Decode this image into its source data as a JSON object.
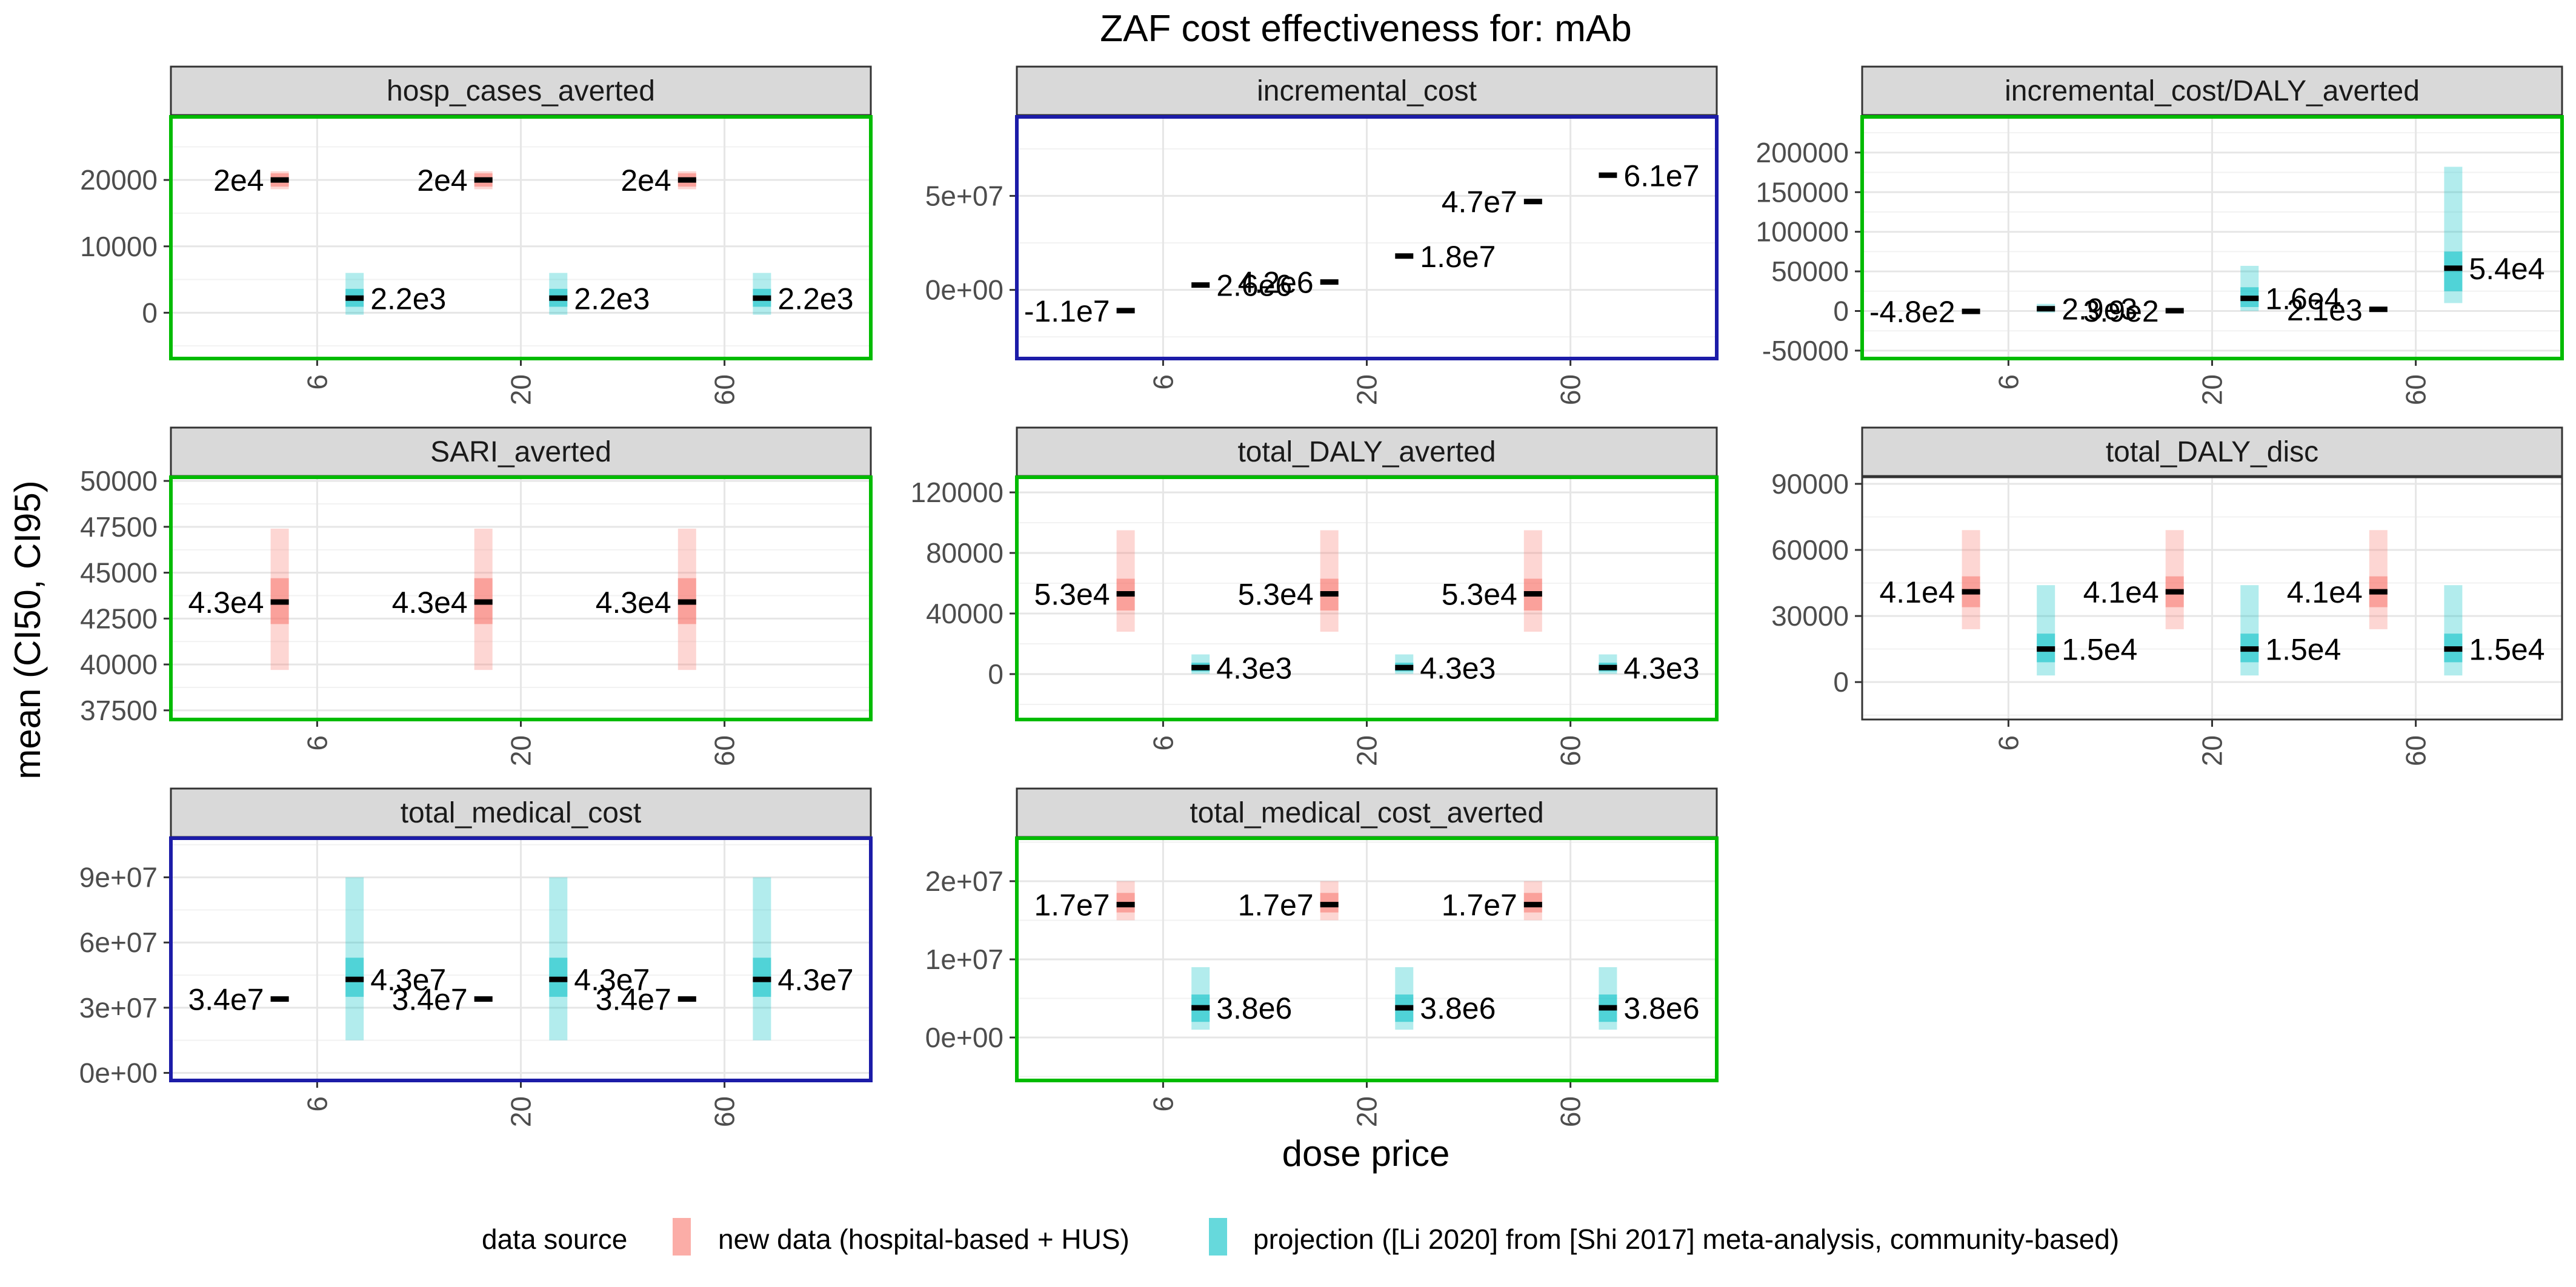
{
  "figure": {
    "title": "ZAF cost effectiveness for: mAb",
    "xlabel": "dose price",
    "ylabel": "mean (CI50, CI95)",
    "legend_title": "data source",
    "legend_placement": "bottom"
  },
  "chart_data": {
    "type": "errorbar-facets",
    "categories": [
      "6",
      "20",
      "60"
    ],
    "series": [
      {
        "name": "new data (hospital-based + HUS)",
        "color": "#F8766D"
      },
      {
        "name": "projection ([Li 2020] from [Shi 2017] meta-analysis, community-based)",
        "color": "#00BFC4"
      }
    ],
    "panels": [
      {
        "title": "hosp_cases_averted",
        "border_color": "#00bb00",
        "ylim": [
          -6900,
          29500
        ],
        "ticks": [
          0,
          10000,
          20000
        ],
        "tick_labels": [
          "0",
          "10000",
          "20000"
        ],
        "points": [
          {
            "cat": "6",
            "series": 0,
            "mean": 20000,
            "ci50": [
              19000,
              21000
            ],
            "ci95": [
              18600,
              21300
            ],
            "label": "2e4"
          },
          {
            "cat": "6",
            "series": 1,
            "mean": 2200,
            "ci50": [
              900,
              3600
            ],
            "ci95": [
              -300,
              6000
            ],
            "label": "2.2e3"
          },
          {
            "cat": "20",
            "series": 0,
            "mean": 20000,
            "ci50": [
              19000,
              21000
            ],
            "ci95": [
              18600,
              21300
            ],
            "label": "2e4"
          },
          {
            "cat": "20",
            "series": 1,
            "mean": 2200,
            "ci50": [
              900,
              3600
            ],
            "ci95": [
              -300,
              6000
            ],
            "label": "2.2e3"
          },
          {
            "cat": "60",
            "series": 0,
            "mean": 20000,
            "ci50": [
              19000,
              21000
            ],
            "ci95": [
              18600,
              21300
            ],
            "label": "2e4"
          },
          {
            "cat": "60",
            "series": 1,
            "mean": 2200,
            "ci50": [
              900,
              3600
            ],
            "ci95": [
              -300,
              6000
            ],
            "label": "2.2e3"
          }
        ]
      },
      {
        "title": "incremental_cost",
        "border_color": "#1c1ca8",
        "ylim": [
          -36500000,
          92000000
        ],
        "ticks": [
          0,
          50000000
        ],
        "tick_labels": [
          "0e+00",
          "5e+07"
        ],
        "points": [
          {
            "cat": "6",
            "series": 0,
            "mean": -11000000,
            "label": "-1.1e7"
          },
          {
            "cat": "6",
            "series": 1,
            "mean": 2600000,
            "label": "2.6e6"
          },
          {
            "cat": "20",
            "series": 0,
            "mean": 4200000,
            "label": "4.2e6"
          },
          {
            "cat": "20",
            "series": 1,
            "mean": 18000000,
            "label": "1.8e7"
          },
          {
            "cat": "60",
            "series": 0,
            "mean": 47000000,
            "label": "4.7e7"
          },
          {
            "cat": "60",
            "series": 1,
            "mean": 61000000,
            "label": "6.1e7"
          }
        ]
      },
      {
        "title": "incremental_cost/DALY_averted",
        "border_color": "#00bb00",
        "ylim": [
          -60000,
          245000
        ],
        "ticks": [
          -50000,
          0,
          50000,
          100000,
          150000,
          200000
        ],
        "tick_labels": [
          "-50000",
          "0",
          "50000",
          "100000",
          "150000",
          "200000"
        ],
        "points": [
          {
            "cat": "6",
            "series": 0,
            "mean": -480,
            "label": "-4.8e2"
          },
          {
            "cat": "6",
            "series": 1,
            "mean": 2900,
            "ci50": [
              0,
              6000
            ],
            "ci95": [
              -2000,
              9000
            ],
            "label": "2.9e3"
          },
          {
            "cat": "20",
            "series": 0,
            "mean": 390,
            "label": "3.9e2"
          },
          {
            "cat": "20",
            "series": 1,
            "mean": 16000,
            "ci50": [
              5000,
              30000
            ],
            "ci95": [
              0,
              57000
            ],
            "label": "1.6e4"
          },
          {
            "cat": "60",
            "series": 0,
            "mean": 2100,
            "label": "2.1e3"
          },
          {
            "cat": "60",
            "series": 1,
            "mean": 54000,
            "ci50": [
              25000,
              75000
            ],
            "ci95": [
              10000,
              182000
            ],
            "label": "5.4e4"
          }
        ]
      },
      {
        "title": "SARI_averted",
        "border_color": "#00bb00",
        "ylim": [
          37000,
          50200
        ],
        "ticks": [
          37500,
          40000,
          42500,
          45000,
          47500,
          50000
        ],
        "tick_labels": [
          "37500",
          "40000",
          "42500",
          "45000",
          "47500",
          "50000"
        ],
        "points": [
          {
            "cat": "6",
            "series": 0,
            "mean": 43400,
            "ci50": [
              42200,
              44700
            ],
            "ci95": [
              39700,
              47400
            ],
            "label": "4.3e4"
          },
          {
            "cat": "20",
            "series": 0,
            "mean": 43400,
            "ci50": [
              42200,
              44700
            ],
            "ci95": [
              39700,
              47400
            ],
            "label": "4.3e4"
          },
          {
            "cat": "60",
            "series": 0,
            "mean": 43400,
            "ci50": [
              42200,
              44700
            ],
            "ci95": [
              39700,
              47400
            ],
            "label": "4.3e4"
          }
        ]
      },
      {
        "title": "total_DALY_averted",
        "border_color": "#00bb00",
        "ylim": [
          -30000,
          130000
        ],
        "ticks": [
          0,
          40000,
          80000,
          120000
        ],
        "tick_labels": [
          "0",
          "40000",
          "80000",
          "120000"
        ],
        "points": [
          {
            "cat": "6",
            "series": 0,
            "mean": 53000,
            "ci50": [
              42000,
              63000
            ],
            "ci95": [
              28000,
              95000
            ],
            "label": "5.3e4"
          },
          {
            "cat": "6",
            "series": 1,
            "mean": 4300,
            "ci50": [
              1800,
              7500
            ],
            "ci95": [
              200,
              13000
            ],
            "label": "4.3e3"
          },
          {
            "cat": "20",
            "series": 0,
            "mean": 53000,
            "ci50": [
              42000,
              63000
            ],
            "ci95": [
              28000,
              95000
            ],
            "label": "5.3e4"
          },
          {
            "cat": "20",
            "series": 1,
            "mean": 4300,
            "ci50": [
              1800,
              7500
            ],
            "ci95": [
              200,
              13000
            ],
            "label": "4.3e3"
          },
          {
            "cat": "60",
            "series": 0,
            "mean": 53000,
            "ci50": [
              42000,
              63000
            ],
            "ci95": [
              28000,
              95000
            ],
            "label": "5.3e4"
          },
          {
            "cat": "60",
            "series": 1,
            "mean": 4300,
            "ci50": [
              1800,
              7500
            ],
            "ci95": [
              200,
              13000
            ],
            "label": "4.3e3"
          }
        ]
      },
      {
        "title": "total_DALY_disc",
        "border_color": "#333333",
        "ylim": [
          -17000,
          93000
        ],
        "ticks": [
          0,
          30000,
          60000,
          90000
        ],
        "tick_labels": [
          "0",
          "30000",
          "60000",
          "90000"
        ],
        "points": [
          {
            "cat": "6",
            "series": 0,
            "mean": 41000,
            "ci50": [
              34000,
              48000
            ],
            "ci95": [
              24000,
              69000
            ],
            "label": "4.1e4"
          },
          {
            "cat": "6",
            "series": 1,
            "mean": 15000,
            "ci50": [
              9000,
              22000
            ],
            "ci95": [
              3000,
              44000
            ],
            "label": "1.5e4"
          },
          {
            "cat": "20",
            "series": 0,
            "mean": 41000,
            "ci50": [
              34000,
              48000
            ],
            "ci95": [
              24000,
              69000
            ],
            "label": "4.1e4"
          },
          {
            "cat": "20",
            "series": 1,
            "mean": 15000,
            "ci50": [
              9000,
              22000
            ],
            "ci95": [
              3000,
              44000
            ],
            "label": "1.5e4"
          },
          {
            "cat": "60",
            "series": 0,
            "mean": 41000,
            "ci50": [
              34000,
              48000
            ],
            "ci95": [
              24000,
              69000
            ],
            "label": "4.1e4"
          },
          {
            "cat": "60",
            "series": 1,
            "mean": 15000,
            "ci50": [
              9000,
              22000
            ],
            "ci95": [
              3000,
              44000
            ],
            "label": "1.5e4"
          }
        ]
      },
      {
        "title": "total_medical_cost",
        "border_color": "#1c1ca8",
        "ylim": [
          -3500000,
          108000000
        ],
        "ticks": [
          0,
          30000000,
          60000000,
          90000000
        ],
        "tick_labels": [
          "0e+00",
          "3e+07",
          "6e+07",
          "9e+07"
        ],
        "points": [
          {
            "cat": "6",
            "series": 0,
            "mean": 34000000,
            "ci50": [
              33200000,
              34800000
            ],
            "ci95": [
              32800000,
              35200000
            ],
            "label": "3.4e7"
          },
          {
            "cat": "6",
            "series": 1,
            "mean": 43000000,
            "ci50": [
              35000000,
              53000000
            ],
            "ci95": [
              15000000,
              90000000
            ],
            "label": "4.3e7"
          },
          {
            "cat": "20",
            "series": 0,
            "mean": 34000000,
            "ci50": [
              33200000,
              34800000
            ],
            "ci95": [
              32800000,
              35200000
            ],
            "label": "3.4e7"
          },
          {
            "cat": "20",
            "series": 1,
            "mean": 43000000,
            "ci50": [
              35000000,
              53000000
            ],
            "ci95": [
              15000000,
              90000000
            ],
            "label": "4.3e7"
          },
          {
            "cat": "60",
            "series": 0,
            "mean": 34000000,
            "ci50": [
              33200000,
              34800000
            ],
            "ci95": [
              32800000,
              35200000
            ],
            "label": "3.4e7"
          },
          {
            "cat": "60",
            "series": 1,
            "mean": 43000000,
            "ci50": [
              35000000,
              53000000
            ],
            "ci95": [
              15000000,
              90000000
            ],
            "label": "4.3e7"
          }
        ]
      },
      {
        "title": "total_medical_cost_averted",
        "border_color": "#00bb00",
        "ylim": [
          -5500000,
          25500000
        ],
        "ticks": [
          0,
          10000000,
          20000000
        ],
        "tick_labels": [
          "0e+00",
          "1e+07",
          "2e+07"
        ],
        "points": [
          {
            "cat": "6",
            "series": 0,
            "mean": 17000000,
            "ci50": [
              16000000,
              18500000
            ],
            "ci95": [
              15000000,
              20000000
            ],
            "label": "1.7e7"
          },
          {
            "cat": "6",
            "series": 1,
            "mean": 3800000,
            "ci50": [
              2000000,
              5500000
            ],
            "ci95": [
              1000000,
              9000000
            ],
            "label": "3.8e6"
          },
          {
            "cat": "20",
            "series": 0,
            "mean": 17000000,
            "ci50": [
              16000000,
              18500000
            ],
            "ci95": [
              15000000,
              20000000
            ],
            "label": "1.7e7"
          },
          {
            "cat": "20",
            "series": 1,
            "mean": 3800000,
            "ci50": [
              2000000,
              5500000
            ],
            "ci95": [
              1000000,
              9000000
            ],
            "label": "3.8e6"
          },
          {
            "cat": "60",
            "series": 0,
            "mean": 17000000,
            "ci50": [
              16000000,
              18500000
            ],
            "ci95": [
              15000000,
              20000000
            ],
            "label": "1.7e7"
          },
          {
            "cat": "60",
            "series": 1,
            "mean": 3800000,
            "ci50": [
              2000000,
              5500000
            ],
            "ci95": [
              1000000,
              9000000
            ],
            "label": "3.8e6"
          }
        ]
      }
    ]
  }
}
